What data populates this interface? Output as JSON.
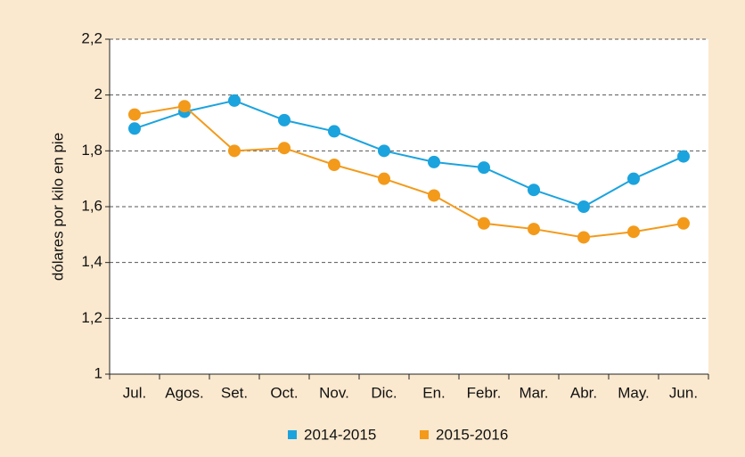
{
  "chart_data": {
    "type": "line",
    "y_label": "dólares por kilo en pie",
    "categories": [
      "Jul.",
      "Agos.",
      "Set.",
      "Oct.",
      "Nov.",
      "Dic.",
      "En.",
      "Febr.",
      "Mar.",
      "Abr.",
      "May.",
      "Jun."
    ],
    "series": [
      {
        "name": "2014-2015",
        "color": "#1ba3de",
        "values": [
          1.88,
          1.94,
          1.98,
          1.91,
          1.87,
          1.8,
          1.76,
          1.74,
          1.66,
          1.6,
          1.7,
          1.78
        ]
      },
      {
        "name": "2015-2016",
        "color": "#f39a1b",
        "values": [
          1.93,
          1.96,
          1.8,
          1.81,
          1.75,
          1.7,
          1.64,
          1.54,
          1.52,
          1.49,
          1.51,
          1.54
        ]
      }
    ],
    "ylim": [
      1,
      2.2
    ],
    "yticks": [
      1,
      {
        "value": 1.2,
        "label": "1,2"
      },
      {
        "value": 1.4,
        "label": "1,4"
      },
      {
        "value": 1.6,
        "label": "1,6"
      },
      {
        "value": 1.8,
        "label": "1,8"
      },
      2,
      {
        "value": 2.2,
        "label": "2,2"
      }
    ],
    "grid": true,
    "legend": "bottom"
  }
}
